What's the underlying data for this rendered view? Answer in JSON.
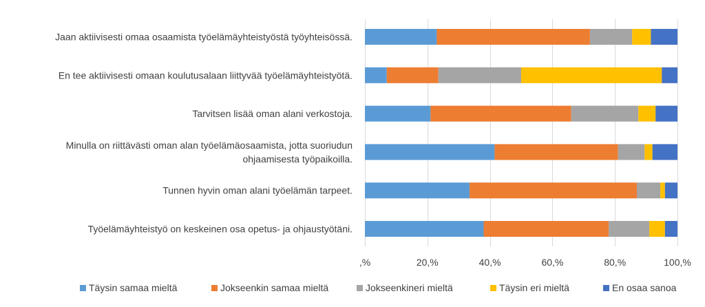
{
  "chart_data": {
    "type": "bar",
    "orientation": "horizontal",
    "stacked": "percent",
    "categories": [
      [
        "Jaan aktiivisesti omaa osaamista työelämäyhteistyöstä työyhteisössä."
      ],
      [
        "En tee aktiivisesti omaan koulutusalaan liittyvää työelämäyhteistyötä."
      ],
      [
        "Tarvitsen lisää oman alani verkostoja."
      ],
      [
        "Minulla on riittävästi oman alan työelämäosaamista, jotta suoriudun",
        "ohjaamisesta työpaikoilla."
      ],
      [
        "Tunnen hyvin oman alani työelämän tarpeet."
      ],
      [
        "Työelämäyhteistyö on keskeinen osa opetus- ja ohjaustyötäni."
      ]
    ],
    "series": [
      {
        "name": "Täysin samaa mieltä",
        "color": "#5B9BD5",
        "values": [
          23,
          7,
          21,
          41.5,
          33.5,
          38
        ]
      },
      {
        "name": "Jokseenkin samaa mieltä",
        "color": "#ED7D31",
        "values": [
          49,
          16.5,
          45,
          39.5,
          53.5,
          40
        ]
      },
      {
        "name": "Jokseenkineri mieltä",
        "color": "#A5A5A5",
        "values": [
          13.5,
          26.5,
          21.5,
          8.5,
          7.5,
          13
        ]
      },
      {
        "name": "Täysin eri mieltä",
        "color": "#FFC000",
        "values": [
          6,
          45,
          5.5,
          2.5,
          1.5,
          5
        ]
      },
      {
        "name": "En osaa sanoa",
        "color": "#4472C4",
        "values": [
          8.5,
          5,
          7,
          8,
          4,
          4
        ]
      }
    ],
    "xlim": [
      0,
      100
    ],
    "xticks": [
      0,
      20,
      40,
      60,
      80,
      100
    ],
    "xtick_labels": [
      ",%",
      "20,%",
      "40,%",
      "60,%",
      "80,%",
      "100,%"
    ],
    "grid": "vertical",
    "legend_position": "bottom"
  }
}
